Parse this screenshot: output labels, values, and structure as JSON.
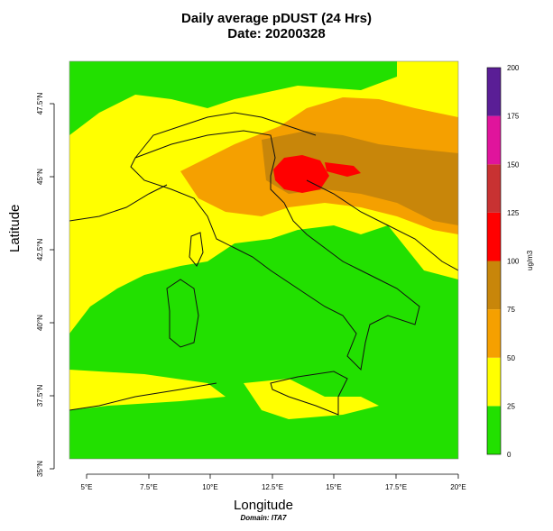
{
  "title": "Daily average pDUST (24 Hrs)",
  "subtitle": "Date: 20200328",
  "xlabel": "Longitude",
  "ylabel": "Latitude",
  "domain_label": "Domain: ITA7",
  "colorbar": {
    "unit": "ug/m3",
    "ticks": [
      "0",
      "25",
      "50",
      "75",
      "100",
      "125",
      "150",
      "175",
      "200"
    ],
    "bins": [
      {
        "from": 0,
        "to": 25,
        "color": "#22e000"
      },
      {
        "from": 25,
        "to": 50,
        "color": "#ffff00"
      },
      {
        "from": 50,
        "to": 75,
        "color": "#f5a000"
      },
      {
        "from": 75,
        "to": 100,
        "color": "#c8860a"
      },
      {
        "from": 100,
        "to": 125,
        "color": "#ff0000"
      },
      {
        "from": 125,
        "to": 150,
        "color": "#c83232"
      },
      {
        "from": 150,
        "to": 175,
        "color": "#e0149c"
      },
      {
        "from": 175,
        "to": 200,
        "color": "#5a1e96"
      }
    ]
  },
  "map": {
    "lon_ticks": [
      "5°E",
      "7.5°E",
      "10°E",
      "12.5°E",
      "15°E",
      "17.5°E",
      "20°E"
    ],
    "lat_ticks": [
      "35°N",
      "37.5°N",
      "40°N",
      "42.5°N",
      "45°N",
      "47.5°N"
    ],
    "lon_range": [
      4.5,
      20
    ],
    "lat_range": [
      35,
      48.2
    ],
    "field_colors": {
      "low": "#22e000",
      "moderate": "#ffff00",
      "high": "#f5a000",
      "very_high": "#c8860a",
      "extreme": "#ff0000"
    }
  }
}
